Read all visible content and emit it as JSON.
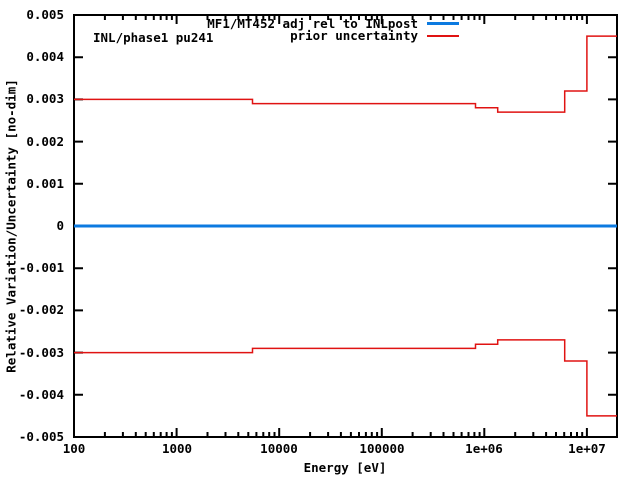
{
  "plot_label": "INL/phase1 pu241",
  "colors": {
    "adjusted_line": "#0c7ae0",
    "prior_uncertainty_line": "#e01312",
    "axis": "#000000",
    "background": "#ffffff"
  },
  "chart_data": {
    "type": "line",
    "step_style": "horizontal-steps",
    "title": "",
    "xlabel": "Energy [eV]",
    "ylabel": "Relative Variation/Uncertainty [no-dim]",
    "x_scale": "log",
    "y_scale": "linear",
    "xlim": [
      100,
      19640000
    ],
    "ylim": [
      -0.005,
      0.005
    ],
    "grid": false,
    "legend_position": "inside top right",
    "x_ticks": [
      {
        "v": 100,
        "label": "100"
      },
      {
        "v": 1000,
        "label": "1000"
      },
      {
        "v": 10000,
        "label": "10000"
      },
      {
        "v": 100000,
        "label": "100000"
      },
      {
        "v": 1000000,
        "label": "1e+06"
      },
      {
        "v": 10000000,
        "label": "1e+07"
      }
    ],
    "x_minor_ticks": "log decades 2-9",
    "y_ticks": [
      {
        "v": 0.005,
        "label": "0.005"
      },
      {
        "v": 0.004,
        "label": "0.004"
      },
      {
        "v": 0.003,
        "label": "0.003"
      },
      {
        "v": 0.002,
        "label": "0.002"
      },
      {
        "v": 0.001,
        "label": "0.001"
      },
      {
        "v": 0,
        "label": "0"
      },
      {
        "v": -0.001,
        "label": "-0.001"
      },
      {
        "v": -0.002,
        "label": "-0.002"
      },
      {
        "v": -0.003,
        "label": "-0.003"
      },
      {
        "v": -0.004,
        "label": "-0.004"
      },
      {
        "v": -0.005,
        "label": "-0.005"
      }
    ],
    "series": [
      {
        "name": "MF1/MT452 adj rel to INLpost",
        "color": "#0c7ae0",
        "line_width": 3,
        "curves": [
          {
            "boundaries": [
              100,
              19640000
            ],
            "values": [
              0
            ]
          }
        ]
      },
      {
        "name": "prior uncertainty",
        "color": "#e01312",
        "line_width": 1.5,
        "curves": [
          {
            "boundaries": [
              100,
              5500,
              820000,
              1350000,
              6070000,
              10000000,
              19640000
            ],
            "values": [
              0.003,
              0.0029,
              0.0028,
              0.0027,
              0.0032,
              0.0045
            ]
          },
          {
            "boundaries": [
              100,
              5500,
              820000,
              1350000,
              6070000,
              10000000,
              19640000
            ],
            "values": [
              -0.003,
              -0.0029,
              -0.0028,
              -0.0027,
              -0.0032,
              -0.0045
            ]
          }
        ]
      }
    ]
  }
}
